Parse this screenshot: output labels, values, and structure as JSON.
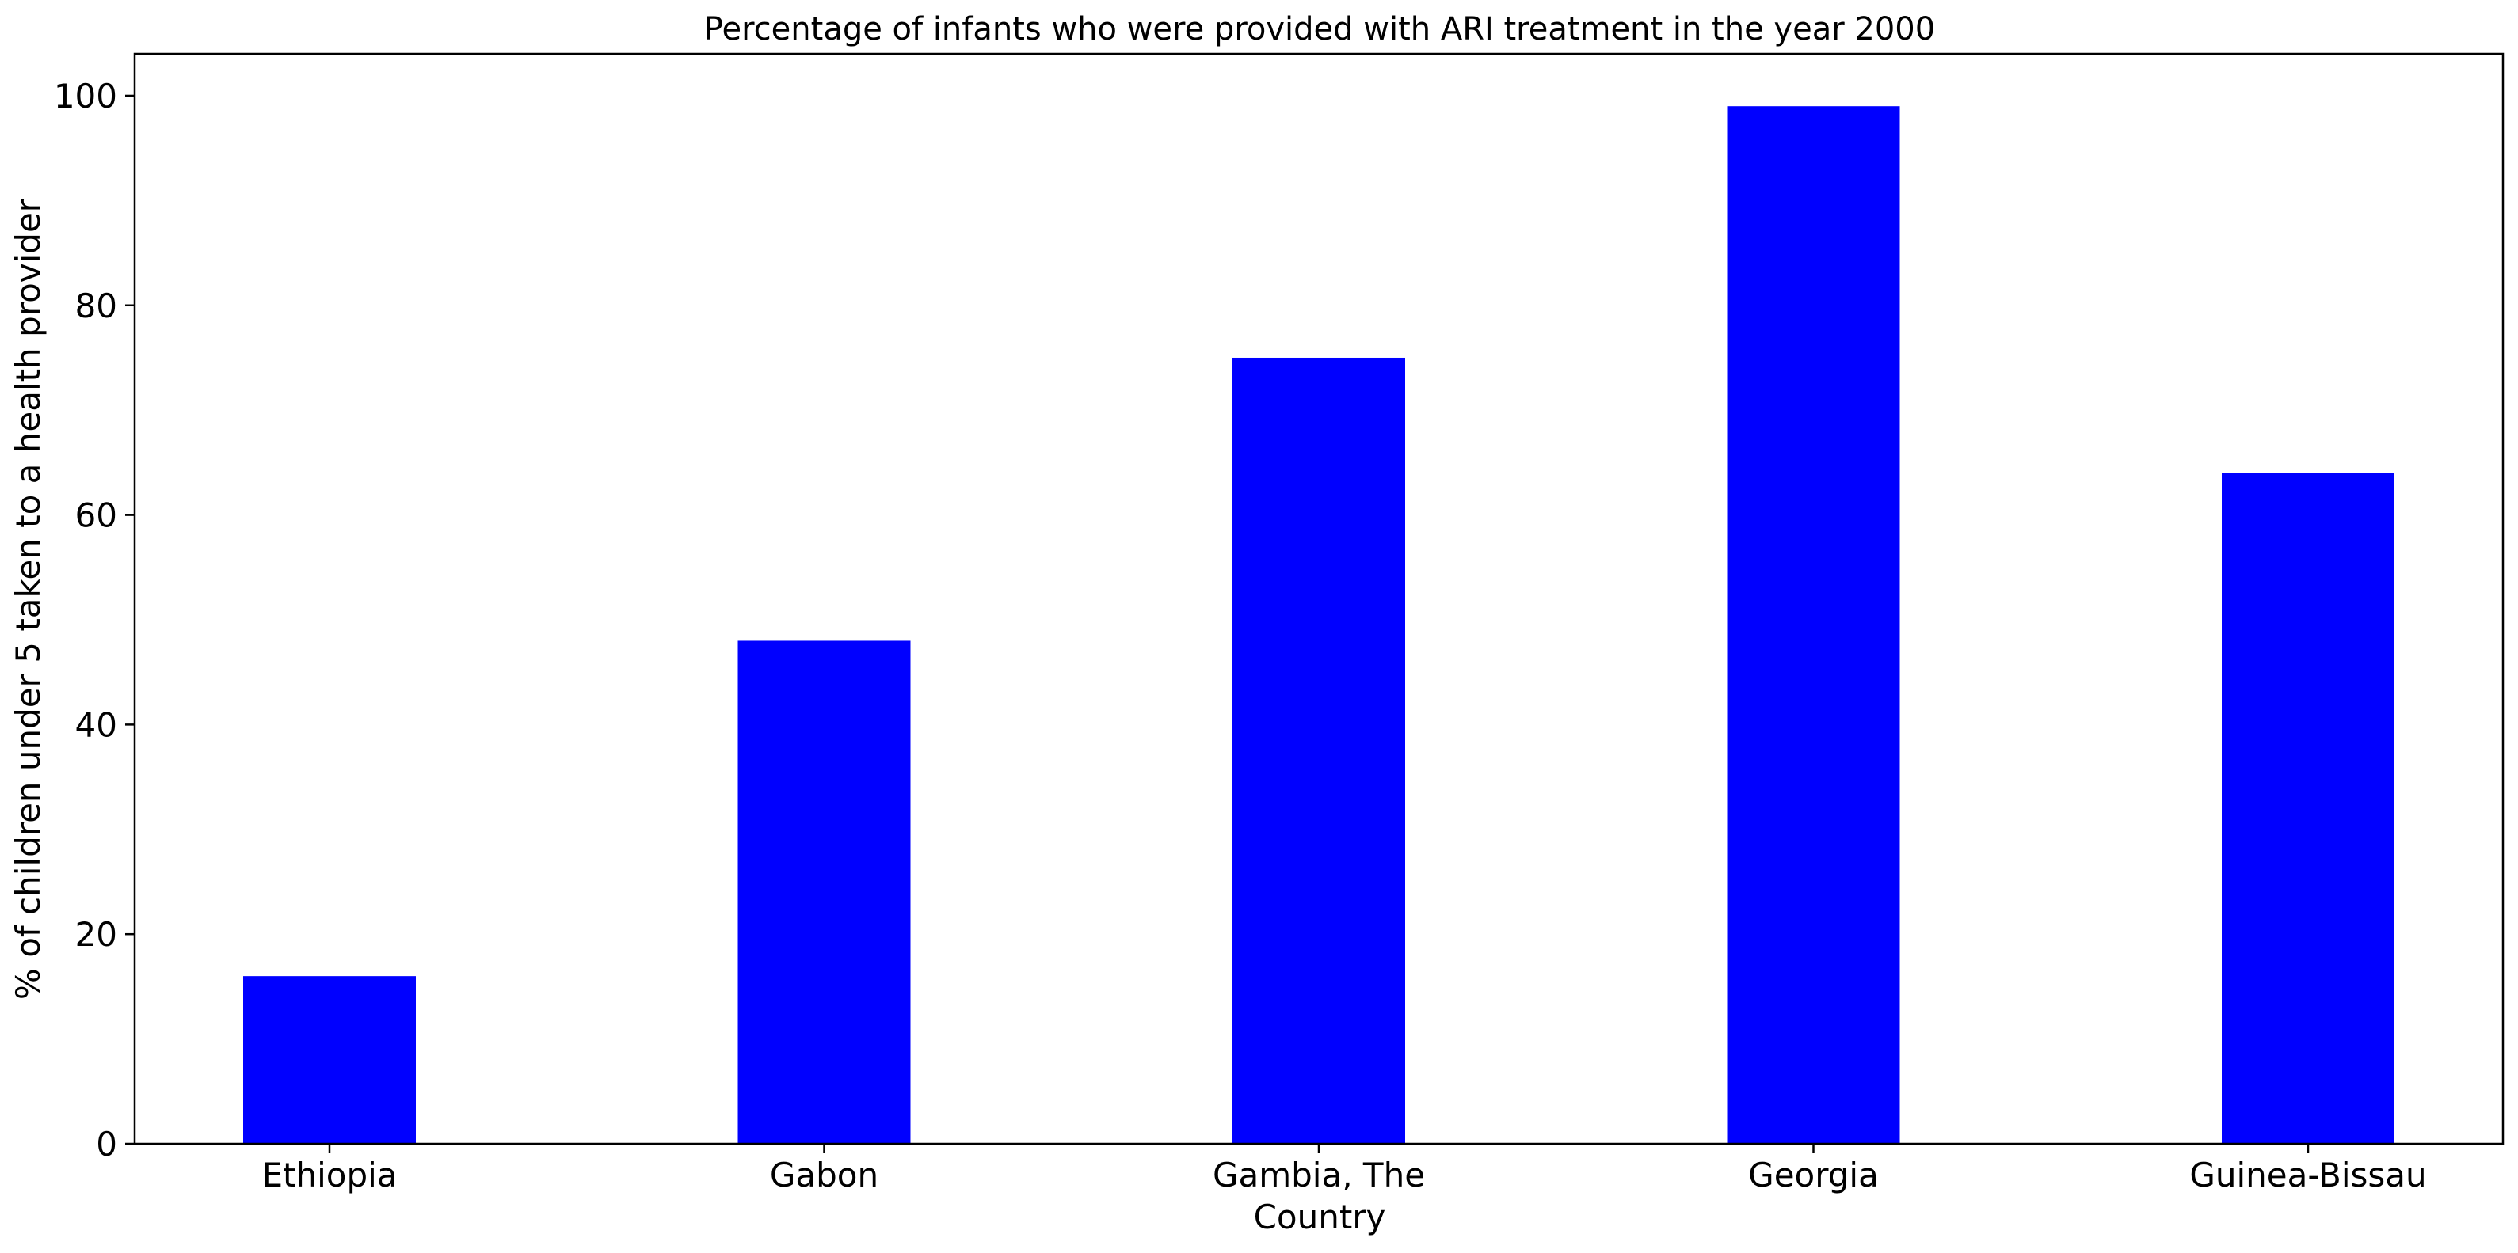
{
  "chart_data": {
    "type": "bar",
    "title": "Percentage of infants who were provided with ARI treatment in the year 2000",
    "xlabel": "Country",
    "ylabel": "% of children under 5 taken to a health provider",
    "categories": [
      "Ethiopia",
      "Gabon",
      "Gambia, The",
      "Georgia",
      "Guinea-Bissau"
    ],
    "values": [
      16,
      48,
      75,
      99,
      64
    ],
    "ylim": [
      0,
      104
    ],
    "yticks": [
      0,
      20,
      40,
      60,
      80,
      100
    ],
    "bar_color": "#0000ff",
    "grid": false,
    "legend": "none"
  }
}
